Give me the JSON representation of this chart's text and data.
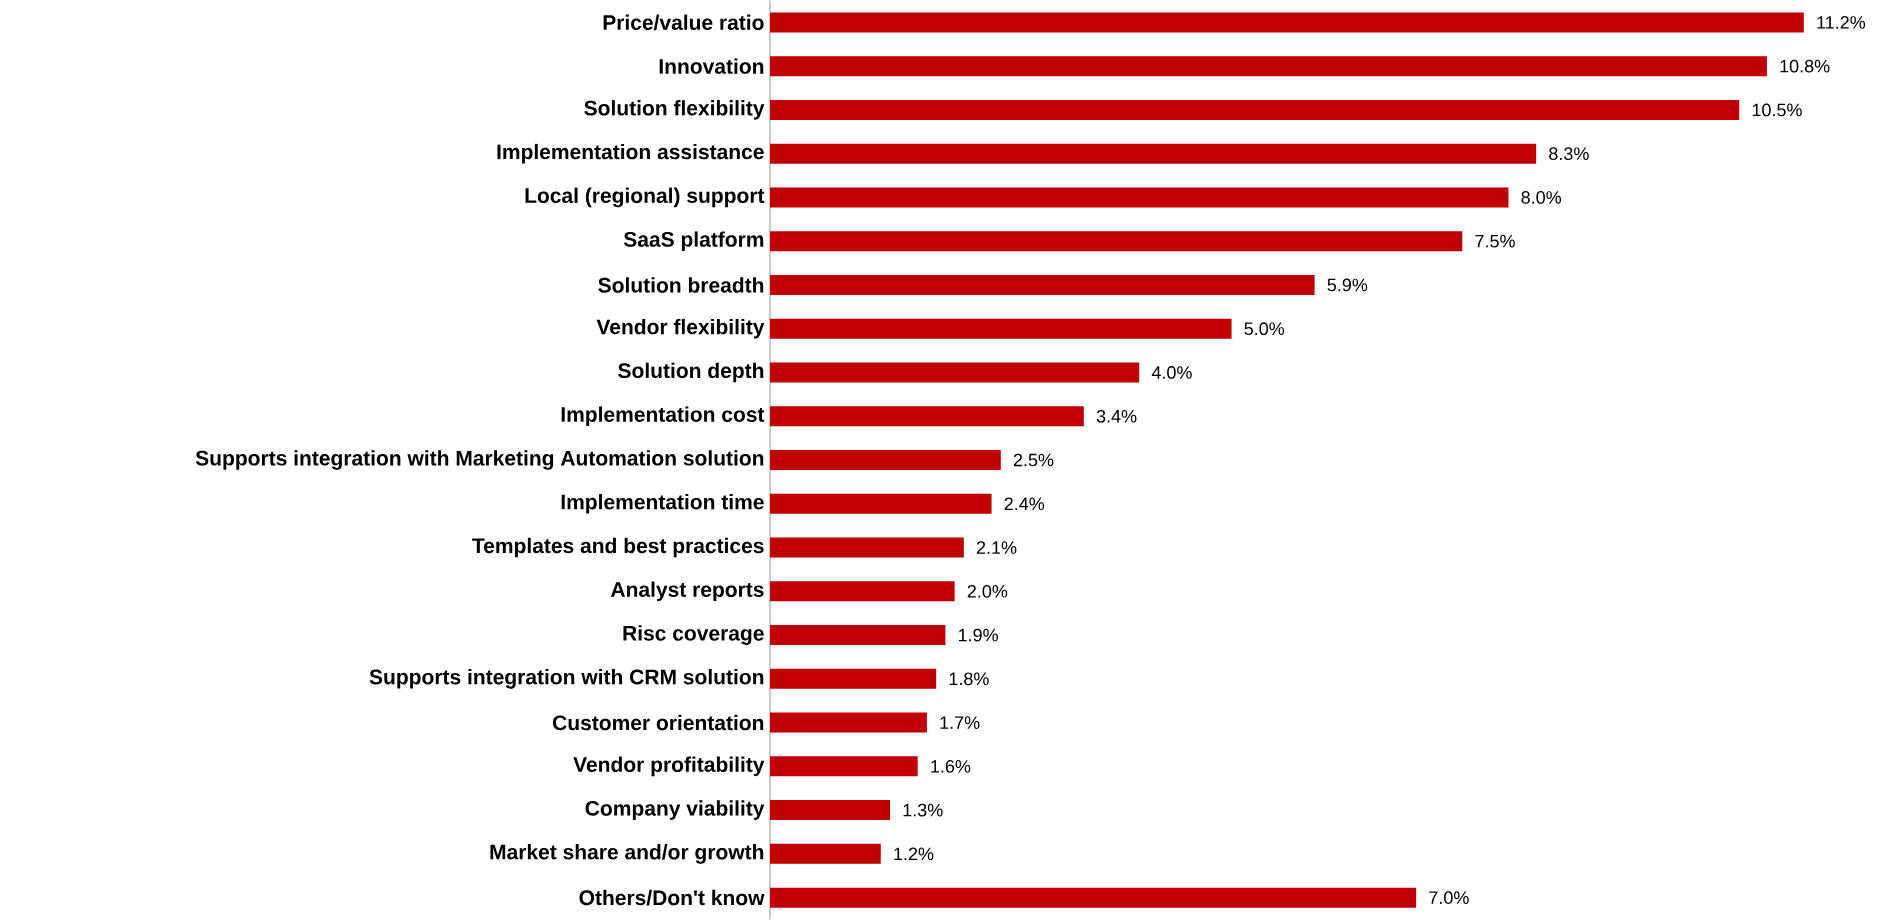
{
  "chart_data": {
    "type": "bar",
    "orientation": "horizontal",
    "color": "#c00000",
    "categories": [
      "Price/value ratio",
      "Innovation",
      "Solution flexibility",
      "Implementation assistance",
      "Local (regional) support",
      "SaaS platform",
      "Solution breadth",
      "Vendor flexibility",
      "Solution depth",
      "Implementation cost",
      "Supports integration with Marketing Automation solution",
      "Implementation time",
      "Templates and best practices",
      "Analyst reports",
      "Risc coverage",
      "Supports integration with CRM solution",
      "Customer orientation",
      "Vendor profitability",
      "Company viability",
      "Market share and/or growth",
      "Others/Don't know"
    ],
    "values": [
      11.2,
      10.8,
      10.5,
      8.3,
      8.0,
      7.5,
      5.9,
      5.0,
      4.0,
      3.4,
      2.5,
      2.4,
      2.1,
      2.0,
      1.9,
      1.8,
      1.7,
      1.6,
      1.3,
      1.2,
      7.0
    ],
    "value_labels": [
      "11.2%",
      "10.8%",
      "10.5%",
      "8.3%",
      "8.0%",
      "7.5%",
      "5.9%",
      "5.0%",
      "4.0%",
      "3.4%",
      "2.5%",
      "2.4%",
      "2.1%",
      "2.0%",
      "1.9%",
      "1.8%",
      "1.7%",
      "1.6%",
      "1.3%",
      "1.2%",
      "7.0%"
    ]
  }
}
